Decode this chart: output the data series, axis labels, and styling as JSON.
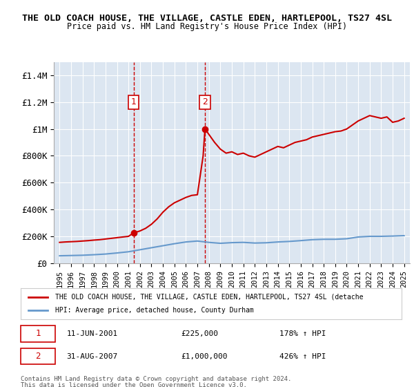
{
  "title": "THE OLD COACH HOUSE, THE VILLAGE, CASTLE EDEN, HARTLEPOOL, TS27 4SL",
  "subtitle": "Price paid vs. HM Land Registry's House Price Index (HPI)",
  "ylabel_ticks": [
    0,
    200000,
    400000,
    600000,
    800000,
    1000000,
    1200000,
    1400000
  ],
  "ylabel_labels": [
    "£0",
    "£200K",
    "£400K",
    "£600K",
    "£800K",
    "£1M",
    "£1.2M",
    "£1.4M"
  ],
  "ylim": [
    0,
    1500000
  ],
  "xlim": [
    1994.5,
    2025.5
  ],
  "sale1_x": 2001.44,
  "sale1_y": 225000,
  "sale2_x": 2007.66,
  "sale2_y": 1000000,
  "sale1_label": "11-JUN-2001",
  "sale2_label": "31-AUG-2007",
  "sale1_price": "£225,000",
  "sale2_price": "£1,000,000",
  "sale1_hpi": "178% ↑ HPI",
  "sale2_hpi": "426% ↑ HPI",
  "legend_property": "THE OLD COACH HOUSE, THE VILLAGE, CASTLE EDEN, HARTLEPOOL, TS27 4SL (detache",
  "legend_hpi": "HPI: Average price, detached house, County Durham",
  "footer1": "Contains HM Land Registry data © Crown copyright and database right 2024.",
  "footer2": "This data is licensed under the Open Government Licence v3.0.",
  "red_color": "#cc0000",
  "blue_color": "#6699cc",
  "bg_color": "#ffffff",
  "plot_bg_color": "#dce6f1",
  "grid_color": "#ffffff",
  "hpi_years": [
    1995,
    1996,
    1997,
    1998,
    1999,
    2000,
    2001,
    2002,
    2003,
    2004,
    2005,
    2006,
    2007,
    2008,
    2009,
    2010,
    2011,
    2012,
    2013,
    2014,
    2015,
    2016,
    2017,
    2018,
    2019,
    2020,
    2021,
    2022,
    2023,
    2024,
    2025
  ],
  "hpi_values": [
    55000,
    57000,
    59000,
    63000,
    68000,
    76000,
    85000,
    100000,
    115000,
    130000,
    145000,
    158000,
    165000,
    155000,
    148000,
    153000,
    155000,
    150000,
    152000,
    158000,
    162000,
    168000,
    175000,
    178000,
    178000,
    182000,
    195000,
    200000,
    200000,
    202000,
    205000
  ],
  "red_years_pre": [
    1995.0,
    1995.5,
    1996.0,
    1996.5,
    1997.0,
    1997.5,
    1998.0,
    1998.5,
    1999.0,
    1999.5,
    2000.0,
    2000.5,
    2001.0,
    2001.44
  ],
  "red_values_pre": [
    155000,
    158000,
    160000,
    162000,
    165000,
    168000,
    172000,
    175000,
    180000,
    185000,
    190000,
    195000,
    200000,
    225000
  ],
  "red_years_mid": [
    2001.44,
    2002.0,
    2002.5,
    2003.0,
    2003.5,
    2004.0,
    2004.5,
    2005.0,
    2005.5,
    2006.0,
    2006.5,
    2007.0,
    2007.5,
    2007.66
  ],
  "red_values_mid": [
    225000,
    240000,
    260000,
    290000,
    330000,
    380000,
    420000,
    450000,
    470000,
    490000,
    505000,
    510000,
    800000,
    1000000
  ],
  "red_years_post": [
    2007.66,
    2008.0,
    2008.5,
    2009.0,
    2009.5,
    2010.0,
    2010.5,
    2011.0,
    2011.5,
    2012.0,
    2012.5,
    2013.0,
    2013.5,
    2014.0,
    2014.5,
    2015.0,
    2015.5,
    2016.0,
    2016.5,
    2017.0,
    2017.5,
    2018.0,
    2018.5,
    2019.0,
    2019.5,
    2020.0,
    2020.5,
    2021.0,
    2021.5,
    2022.0,
    2022.5,
    2023.0,
    2023.5,
    2024.0,
    2024.5,
    2025.0
  ],
  "red_values_post": [
    1000000,
    960000,
    900000,
    850000,
    820000,
    830000,
    810000,
    820000,
    800000,
    790000,
    810000,
    830000,
    850000,
    870000,
    860000,
    880000,
    900000,
    910000,
    920000,
    940000,
    950000,
    960000,
    970000,
    980000,
    985000,
    1000000,
    1030000,
    1060000,
    1080000,
    1100000,
    1090000,
    1080000,
    1090000,
    1050000,
    1060000,
    1080000
  ]
}
